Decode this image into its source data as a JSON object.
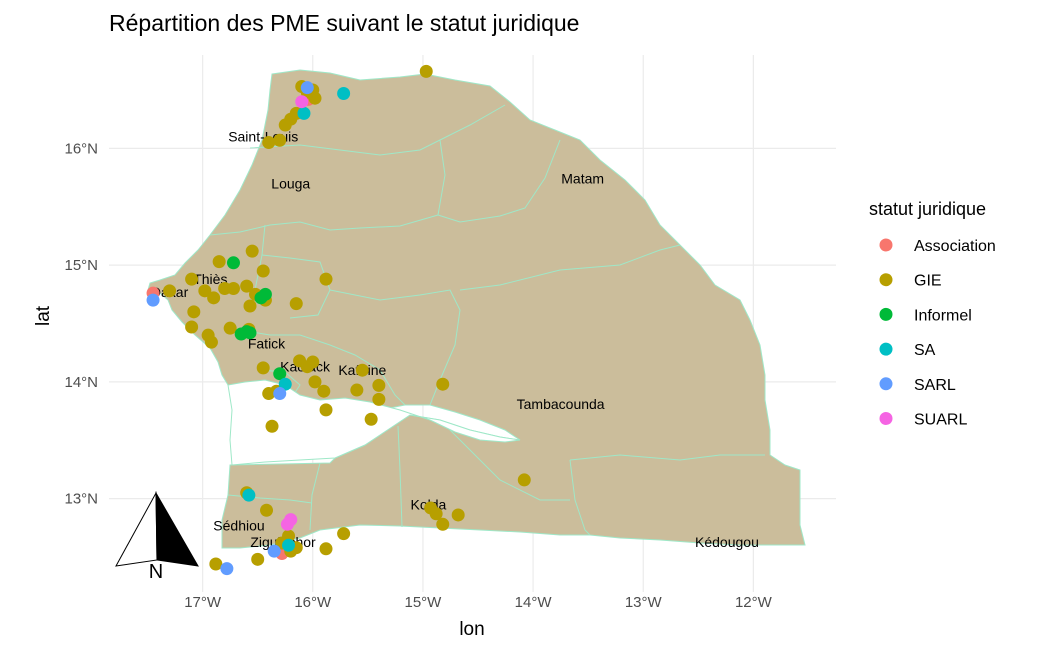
{
  "title": "Répartition des PME suivant le statut juridique",
  "axes": {
    "xlabel": "lon",
    "ylabel": "lat",
    "x_ticks": [
      {
        "value": -17,
        "label": "17°W"
      },
      {
        "value": -16,
        "label": "16°W"
      },
      {
        "value": -15,
        "label": "15°W"
      },
      {
        "value": -14,
        "label": "14°W"
      },
      {
        "value": -13,
        "label": "13°W"
      },
      {
        "value": -12,
        "label": "12°W"
      }
    ],
    "y_ticks": [
      {
        "value": 13,
        "label": "13°N"
      },
      {
        "value": 14,
        "label": "14°N"
      },
      {
        "value": 15,
        "label": "15°N"
      },
      {
        "value": 16,
        "label": "16°N"
      }
    ],
    "xlim": [
      -17.85,
      -11.25
    ],
    "ylim": [
      12.2,
      16.8
    ]
  },
  "legend": {
    "title": "statut juridique",
    "placement": "right",
    "items": [
      {
        "key": "Association",
        "label": "Association",
        "color": "#F8766D"
      },
      {
        "key": "GIE",
        "label": "GIE",
        "color": "#B79F00"
      },
      {
        "key": "Informel",
        "label": "Informel",
        "color": "#00BA38"
      },
      {
        "key": "SA",
        "label": "SA",
        "color": "#00BFC4"
      },
      {
        "key": "SARL",
        "label": "SARL",
        "color": "#619CFF"
      },
      {
        "key": "SUARL",
        "label": "SUARL",
        "color": "#F564E3"
      }
    ]
  },
  "map": {
    "land_color": "#CBBD9B",
    "border_color": "#9FE8C8",
    "grid": true
  },
  "regions": [
    {
      "name": "Saint-Louis",
      "lon": -16.45,
      "lat": 16.1
    },
    {
      "name": "Louga",
      "lon": -16.2,
      "lat": 15.7
    },
    {
      "name": "Matam",
      "lon": -13.55,
      "lat": 15.74
    },
    {
      "name": "Dakar",
      "lon": -17.3,
      "lat": 14.77
    },
    {
      "name": "Thiès",
      "lon": -16.93,
      "lat": 14.88
    },
    {
      "name": "Fatick",
      "lon": -16.42,
      "lat": 14.33
    },
    {
      "name": "Kaolack",
      "lon": -16.07,
      "lat": 14.13
    },
    {
      "name": "Kaffrine",
      "lon": -15.55,
      "lat": 14.1
    },
    {
      "name": "Tambacounda",
      "lon": -13.75,
      "lat": 13.81
    },
    {
      "name": "Kolda",
      "lon": -14.95,
      "lat": 12.95
    },
    {
      "name": "Sédhiou",
      "lon": -16.67,
      "lat": 12.77
    },
    {
      "name": "Ziguinchor",
      "lon": -16.27,
      "lat": 12.63
    },
    {
      "name": "Kédougou",
      "lon": -12.24,
      "lat": 12.63
    }
  ],
  "north_arrow": {
    "label": "N"
  },
  "chart_data": {
    "type": "scatter",
    "title": "Répartition des PME suivant le statut juridique",
    "xlabel": "lon",
    "ylabel": "lat",
    "xlim": [
      -17.85,
      -11.25
    ],
    "ylim": [
      12.2,
      16.8
    ],
    "series": [
      {
        "name": "Association",
        "points": [
          [
            -17.45,
            14.76
          ],
          [
            -16.28,
            12.53
          ],
          [
            -16.04,
            16.42
          ]
        ]
      },
      {
        "name": "GIE",
        "points": [
          [
            -16.1,
            16.53
          ],
          [
            -16.0,
            16.5
          ],
          [
            -15.98,
            16.43
          ],
          [
            -16.05,
            16.48
          ],
          [
            -14.97,
            16.66
          ],
          [
            -16.15,
            16.3
          ],
          [
            -16.2,
            16.25
          ],
          [
            -16.25,
            16.2
          ],
          [
            -16.4,
            16.05
          ],
          [
            -16.3,
            16.07
          ],
          [
            -17.3,
            14.78
          ],
          [
            -17.1,
            14.88
          ],
          [
            -16.85,
            15.03
          ],
          [
            -16.55,
            15.12
          ],
          [
            -16.45,
            14.95
          ],
          [
            -15.88,
            14.88
          ],
          [
            -16.98,
            14.78
          ],
          [
            -16.8,
            14.8
          ],
          [
            -16.6,
            14.82
          ],
          [
            -16.52,
            14.75
          ],
          [
            -16.57,
            14.65
          ],
          [
            -16.43,
            14.7
          ],
          [
            -16.15,
            14.67
          ],
          [
            -16.9,
            14.72
          ],
          [
            -16.72,
            14.8
          ],
          [
            -17.08,
            14.6
          ],
          [
            -17.1,
            14.47
          ],
          [
            -16.95,
            14.4
          ],
          [
            -16.92,
            14.34
          ],
          [
            -16.75,
            14.46
          ],
          [
            -16.58,
            14.45
          ],
          [
            -16.12,
            14.18
          ],
          [
            -16.0,
            14.17
          ],
          [
            -16.05,
            14.13
          ],
          [
            -15.98,
            14.0
          ],
          [
            -16.4,
            13.9
          ],
          [
            -16.33,
            13.92
          ],
          [
            -15.9,
            13.92
          ],
          [
            -15.6,
            13.93
          ],
          [
            -15.4,
            13.97
          ],
          [
            -15.4,
            13.85
          ],
          [
            -15.55,
            14.1
          ],
          [
            -15.88,
            13.76
          ],
          [
            -15.47,
            13.68
          ],
          [
            -16.37,
            13.62
          ],
          [
            -16.45,
            14.12
          ],
          [
            -14.82,
            13.98
          ],
          [
            -14.08,
            13.16
          ],
          [
            -14.93,
            12.92
          ],
          [
            -14.88,
            12.87
          ],
          [
            -14.68,
            12.86
          ],
          [
            -14.82,
            12.78
          ],
          [
            -16.6,
            13.05
          ],
          [
            -16.42,
            12.9
          ],
          [
            -16.22,
            12.68
          ],
          [
            -16.15,
            12.58
          ],
          [
            -16.28,
            12.62
          ],
          [
            -16.2,
            12.55
          ],
          [
            -15.72,
            12.7
          ],
          [
            -15.88,
            12.57
          ],
          [
            -16.5,
            12.48
          ],
          [
            -16.88,
            12.44
          ]
        ]
      },
      {
        "name": "Informel",
        "points": [
          [
            -16.72,
            15.02
          ],
          [
            -16.43,
            14.75
          ],
          [
            -16.47,
            14.72
          ],
          [
            -16.57,
            14.42
          ],
          [
            -16.65,
            14.41
          ],
          [
            -16.6,
            14.43
          ],
          [
            -16.3,
            14.07
          ]
        ]
      },
      {
        "name": "SA",
        "points": [
          [
            -15.72,
            16.47
          ],
          [
            -16.08,
            16.3
          ],
          [
            -16.25,
            13.98
          ],
          [
            -16.58,
            13.03
          ],
          [
            -16.22,
            12.6
          ]
        ]
      },
      {
        "name": "SARL",
        "points": [
          [
            -17.45,
            14.7
          ],
          [
            -16.78,
            12.4
          ],
          [
            -16.05,
            16.52
          ],
          [
            -16.3,
            13.9
          ],
          [
            -16.35,
            12.55
          ]
        ]
      },
      {
        "name": "SUARL",
        "points": [
          [
            -16.1,
            16.4
          ],
          [
            -16.2,
            12.82
          ],
          [
            -16.23,
            12.78
          ]
        ]
      }
    ]
  }
}
